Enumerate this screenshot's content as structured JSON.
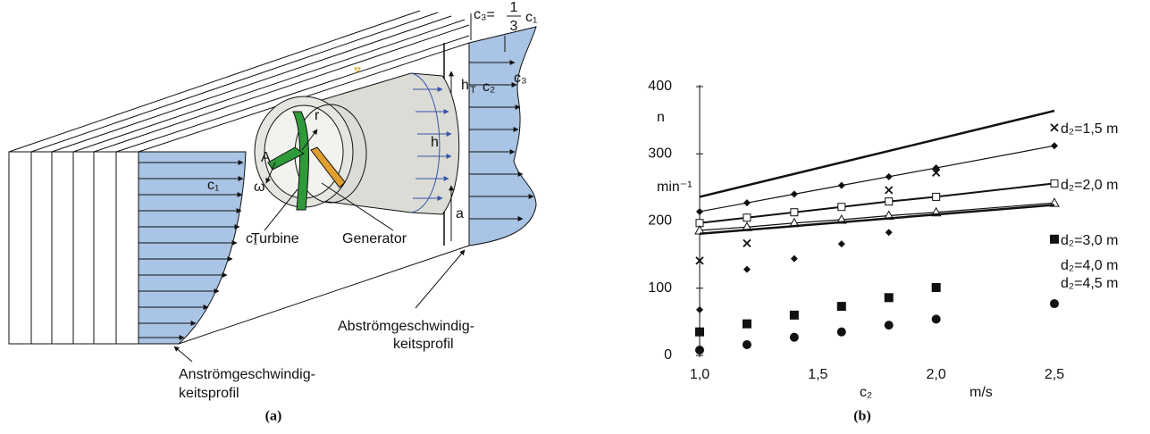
{
  "panel_a": {
    "caption": "(a)",
    "formula": {
      "lhs": "c₃=",
      "numerator": "1",
      "denominator": "3",
      "rhs": "c₁"
    },
    "labels": {
      "h": "h",
      "h_sub": "T",
      "c2": "c₂",
      "c3": "c₃",
      "c1_top": "c₁",
      "c1_low": "c₁",
      "A": "A",
      "omega": "ω",
      "r": "r",
      "h_right": "h",
      "a": "a",
      "turbine": "Turbine",
      "generator": "Generator"
    },
    "outflow_profile": [
      "Abströmgeschwindig-",
      "keitsprofil"
    ],
    "inflow_profile": [
      "Anströmgeschwindig-",
      "keitsprofil"
    ]
  },
  "panel_b": {
    "caption": "(b)"
  },
  "chart_data": {
    "type": "line",
    "y_label": "n",
    "y_unit": "min⁻¹",
    "x_label": "c₂",
    "x_unit": "m/s",
    "xlim": [
      1.0,
      2.5
    ],
    "ylim": [
      0,
      400
    ],
    "xticks": [
      {
        "value": 1.0,
        "label": "1,0"
      },
      {
        "value": 1.5,
        "label": "1,5"
      },
      {
        "value": 2.0,
        "label": "2,0"
      },
      {
        "value": 2.5,
        "label": "2,5"
      }
    ],
    "yticks": [
      0,
      100,
      200,
      300,
      400
    ],
    "legend_labels": [
      "d₂=1,5 m",
      "d₂=2,0 m",
      "d₂=3,0 m",
      "d₂=4,0 m",
      "d₂=4,5 m"
    ],
    "series": [
      {
        "marker": "none",
        "width": 2.5,
        "x": [
          1.0,
          2.5
        ],
        "values": [
          236,
          364
        ]
      },
      {
        "marker": "diamond",
        "width": 1.2,
        "x": [
          1.0,
          1.2,
          1.4,
          1.6,
          1.8,
          2.0,
          2.5
        ],
        "values": [
          214,
          227,
          240,
          253,
          266,
          279,
          312
        ]
      },
      {
        "marker": "square",
        "width": 2,
        "x": [
          1.0,
          1.2,
          1.4,
          1.6,
          1.8,
          2.0,
          2.5
        ],
        "values": [
          197,
          205,
          213,
          221,
          229,
          236,
          256
        ]
      },
      {
        "marker": "triangle",
        "width": 1.2,
        "x": [
          1.0,
          1.2,
          1.4,
          1.6,
          1.8,
          2.0,
          2.5
        ],
        "values": [
          186,
          191,
          197,
          202,
          208,
          213,
          227
        ]
      },
      {
        "marker": "none",
        "width": 2.5,
        "x": [
          1.0,
          2.5
        ],
        "values": [
          181,
          224
        ]
      },
      {
        "marker": "x",
        "width": 0,
        "x": [
          1.0,
          1.2,
          1.8,
          2.0,
          2.5
        ],
        "values": [
          141,
          167,
          246,
          272,
          339
        ]
      },
      {
        "marker": "diamond",
        "width": 0,
        "x": [
          1.0,
          1.2,
          1.4,
          1.6,
          1.8
        ],
        "values": [
          68,
          128,
          144,
          166,
          183
        ]
      },
      {
        "marker": "square-big",
        "width": 0,
        "x": [
          1.0,
          1.2,
          1.4,
          1.6,
          1.8,
          2.0,
          2.5
        ],
        "values": [
          35,
          47,
          60,
          73,
          86,
          101,
          173
        ]
      },
      {
        "marker": "circle",
        "width": 0,
        "x": [
          1.0,
          1.2,
          1.4,
          1.6,
          1.8,
          2.0,
          2.5
        ],
        "values": [
          8,
          16,
          27,
          35,
          45,
          54,
          77
        ]
      }
    ]
  }
}
